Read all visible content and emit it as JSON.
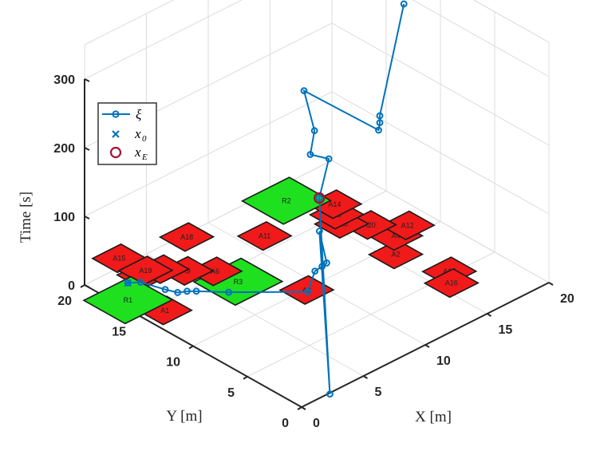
{
  "chart_data": {
    "type": "line3d",
    "xlabel": "X [m]",
    "ylabel": "Y [m]",
    "zlabel": "Time [s]",
    "xlim": [
      0,
      20
    ],
    "ylim": [
      0,
      20
    ],
    "zlim": [
      0,
      300
    ],
    "xticks": [
      "0",
      "5",
      "10",
      "15",
      "20"
    ],
    "yticks": [
      "0",
      "5",
      "10",
      "15",
      "20"
    ],
    "zticks": [
      "0",
      "100",
      "200",
      "300"
    ],
    "grid": true,
    "legend": {
      "placement": "top-left",
      "entries": [
        {
          "symbol": "ξ",
          "sub": "",
          "marker": "line-circle",
          "color": "#0072BD"
        },
        {
          "symbol": "x",
          "sub": "0",
          "marker": "cross",
          "color": "#0072BD"
        },
        {
          "symbol": "x",
          "sub": "E",
          "marker": "ring",
          "color": "#A2142F"
        }
      ]
    },
    "regions": [
      {
        "label": "A7",
        "x": 3.3,
        "y": 18.3,
        "kind": "avoid"
      },
      {
        "label": "R3",
        "x": 6.8,
        "y": 13.6,
        "kind": "reach"
      },
      {
        "label": "A3",
        "x": 9.1,
        "y": 9.9,
        "kind": "avoid"
      },
      {
        "label": "A17",
        "x": 16.6,
        "y": 5.3,
        "kind": "avoid"
      },
      {
        "label": "A16",
        "x": 15.8,
        "y": 4.2,
        "kind": "avoid"
      },
      {
        "label": "A2",
        "x": 15.6,
        "y": 9.1,
        "kind": "avoid"
      },
      {
        "label": "A4",
        "x": 17.0,
        "y": 10.7,
        "kind": "avoid"
      },
      {
        "label": "A12",
        "x": 18.3,
        "y": 11.1,
        "kind": "avoid"
      },
      {
        "label": "A20",
        "x": 16.7,
        "y": 12.8,
        "kind": "avoid"
      },
      {
        "label": "A13",
        "x": 15.6,
        "y": 14.1,
        "kind": "avoid"
      },
      {
        "label": "A5",
        "x": 16.1,
        "y": 15.1,
        "kind": "avoid"
      },
      {
        "label": "A14",
        "x": 16.8,
        "y": 16.1,
        "kind": "avoid"
      },
      {
        "label": "R2",
        "x": 15.0,
        "y": 18.5,
        "kind": "reach"
      },
      {
        "label": "A11",
        "x": 11.4,
        "y": 16.4,
        "kind": "avoid"
      },
      {
        "label": "A18",
        "x": 8.0,
        "y": 19.7,
        "kind": "avoid"
      },
      {
        "label": "A15",
        "x": 3.5,
        "y": 20.8,
        "kind": "avoid"
      },
      {
        "label": "A10",
        "x": 1.3,
        "y": 16.2,
        "kind": "avoid"
      },
      {
        "label": "A1",
        "x": 1.5,
        "y": 14.3,
        "kind": "avoid"
      },
      {
        "label": "A6",
        "x": 6.6,
        "y": 15.5,
        "kind": "avoid"
      },
      {
        "label": "A9",
        "x": 5.4,
        "y": 16.8,
        "kind": "avoid"
      },
      {
        "label": "A8",
        "x": 4.5,
        "y": 18.0,
        "kind": "avoid"
      },
      {
        "label": "A19",
        "x": 3.7,
        "y": 18.6,
        "kind": "avoid"
      },
      {
        "label": "R1",
        "x": 0.7,
        "y": 16.8,
        "kind": "reach"
      }
    ],
    "series": [
      {
        "marker": "circle",
        "color": "#0072BD",
        "x": [
          2.0,
          2.6,
          3.1,
          3.4,
          3.9,
          4.3,
          5.6,
          9.0,
          8.8,
          9.2,
          9.4,
          8.9,
          2.2,
          8.8,
          10.1,
          8.6,
          8.5,
          11.6,
          15.7,
          15.8,
          15.8,
          18.8
        ],
        "y": [
          18.3,
          17.8,
          16.1,
          15.3,
          15.0,
          14.6,
          13.1,
          9.7,
          8.8,
          8.6,
          8.4,
          8.5,
          -0.1,
          8.4,
          9.0,
          9.0,
          8.5,
          13.0,
          10.8,
          10.8,
          10.8,
          12.0
        ],
        "z": [
          0,
          0,
          0,
          0,
          0,
          0,
          0,
          0,
          40,
          45,
          50,
          100,
          0,
          150,
          190,
          210,
          250,
          240,
          165,
          175,
          185,
          310
        ]
      }
    ],
    "start": {
      "x": 2.0,
      "y": 18.3,
      "z": 0
    },
    "end": {
      "x": 8.8,
      "y": 8.4,
      "z": 150
    }
  }
}
